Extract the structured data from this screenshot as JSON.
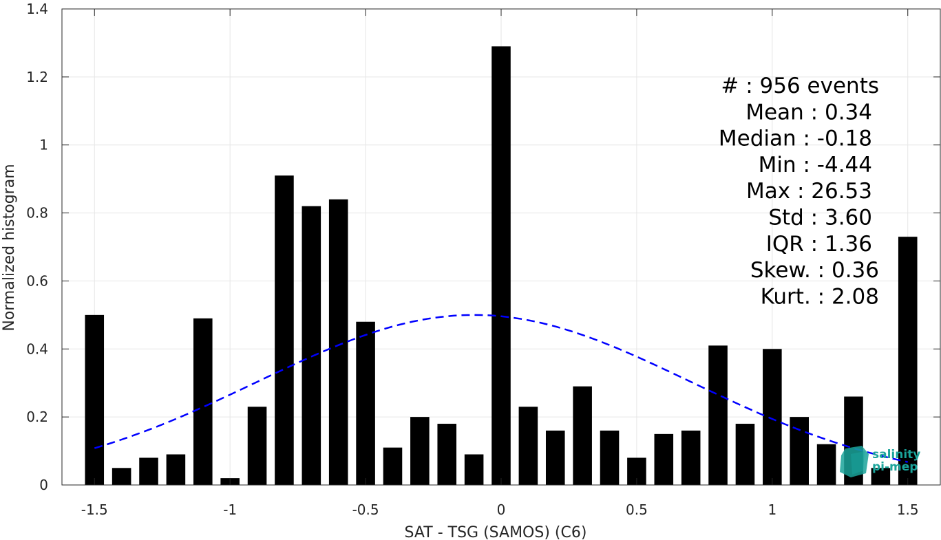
{
  "chart_data": {
    "type": "bar",
    "title": "",
    "xlabel": "SAT - TSG (SAMOS) (C6)",
    "ylabel": "Normalized histogram",
    "xlim": [
      -1.62,
      1.62
    ],
    "ylim": [
      0,
      1.4
    ],
    "grid": true,
    "bar_width": 0.07,
    "x_ticks": [
      -1.5,
      -1,
      -0.5,
      0,
      0.5,
      1,
      1.5
    ],
    "x_tick_labels": [
      "-1.5",
      "-1",
      "-0.5",
      "0",
      "0.5",
      "1",
      "1.5"
    ],
    "y_ticks": [
      0,
      0.2,
      0.4,
      0.6,
      0.8,
      1,
      1.2,
      1.4
    ],
    "y_tick_labels": [
      "0",
      "0.2",
      "0.4",
      "0.6",
      "0.8",
      "1",
      "1.2",
      "1.4"
    ],
    "x": [
      -1.5,
      -1.4,
      -1.3,
      -1.2,
      -1.1,
      -1.0,
      -0.9,
      -0.8,
      -0.7,
      -0.6,
      -0.5,
      -0.4,
      -0.3,
      -0.2,
      -0.1,
      0.0,
      0.1,
      0.2,
      0.3,
      0.4,
      0.5,
      0.6,
      0.7,
      0.8,
      0.9,
      1.0,
      1.1,
      1.2,
      1.3,
      1.4,
      1.5
    ],
    "values": [
      0.5,
      0.05,
      0.08,
      0.09,
      0.49,
      0.02,
      0.23,
      0.91,
      0.82,
      0.84,
      0.48,
      0.11,
      0.2,
      0.18,
      0.09,
      1.29,
      0.23,
      0.16,
      0.29,
      0.16,
      0.08,
      0.15,
      0.16,
      0.41,
      0.18,
      0.4,
      0.2,
      0.12,
      0.26,
      0.05,
      0.73
    ],
    "bar_color": "#000000",
    "fit_curve": {
      "style": "dashed",
      "color": "#0000ff",
      "x_range": [
        -1.5,
        1.5
      ],
      "mean": -0.1,
      "std": 0.8,
      "peak": 0.5
    },
    "stats": [
      "#  : 956 events",
      "Mean : 0.34",
      "Median : -0.18",
      "Min : -4.44",
      "Max : 26.53",
      "Std : 3.60",
      "IQR : 1.36",
      "Skew. : 0.36",
      "Kurt. : 2.08"
    ]
  },
  "logo": {
    "line1": "salinity",
    "line2": "pi-mep",
    "color": "#1aa39a"
  }
}
